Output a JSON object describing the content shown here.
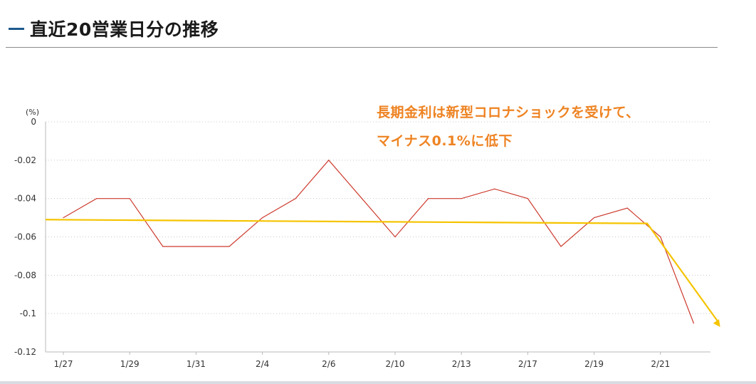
{
  "header": {
    "title": "直近20営業日分の推移"
  },
  "colors": {
    "accent_dash": "#1e5a8c",
    "annotation": "#ee8322",
    "series_line": "#cc3b2e",
    "trend_arrow": "#f5c400"
  },
  "chart_data": {
    "type": "line",
    "title": "",
    "unit_label": "(%)",
    "xlabel": "",
    "ylabel": "",
    "ylim": [
      -0.12,
      0
    ],
    "yticks": [
      0,
      -0.02,
      -0.04,
      -0.06,
      -0.08,
      -0.1,
      -0.12
    ],
    "ytick_labels": [
      "0",
      "-0.02",
      "-0.04",
      "-0.06",
      "-0.08",
      "-0.1",
      "-0.12"
    ],
    "grid": true,
    "x_tick_labels": [
      "1/27",
      "1/29",
      "1/31",
      "2/4",
      "2/6",
      "2/10",
      "2/13",
      "2/17",
      "2/19",
      "2/21"
    ],
    "series": [
      {
        "name": "",
        "values": [
          -0.05,
          -0.04,
          -0.04,
          -0.065,
          -0.065,
          -0.065,
          -0.05,
          -0.04,
          -0.02,
          -0.04,
          -0.06,
          -0.04,
          -0.04,
          -0.035,
          -0.04,
          -0.065,
          -0.05,
          -0.045,
          -0.06,
          -0.105
        ]
      }
    ],
    "trend_arrow": {
      "from_value": -0.051,
      "plateau_value": -0.053,
      "plateau_index": 17.6,
      "to_value": -0.107,
      "to_index": 19.8
    },
    "annotation_lines": [
      "長期金利は新型コロナショックを受けて、",
      "マイナス0.1%に低下"
    ]
  }
}
